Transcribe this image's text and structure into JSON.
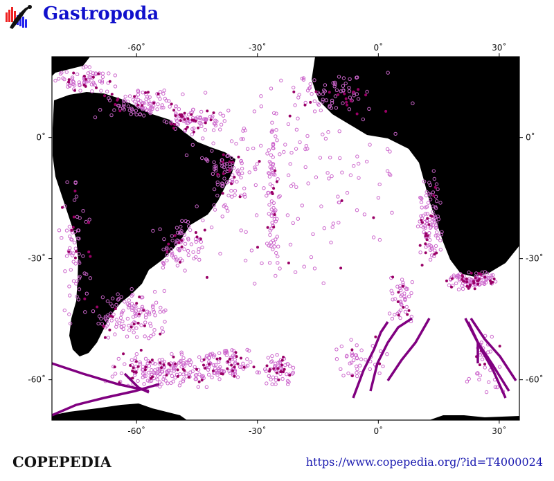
{
  "header": {
    "title": "Gastropoda",
    "logo_icon": "copepedia-logo-icon"
  },
  "map": {
    "projection": "equirectangular",
    "lon_range": [
      -81,
      35
    ],
    "lat_range": [
      -70,
      20
    ],
    "lon_ticks": [
      {
        "v": -60,
        "label": "-60˚"
      },
      {
        "v": -30,
        "label": "-30˚"
      },
      {
        "v": 0,
        "label": "0˚"
      },
      {
        "v": 30,
        "label": "30˚"
      }
    ],
    "lat_ticks": [
      {
        "v": 0,
        "label": "0˚"
      },
      {
        "v": -30,
        "label": "-30˚"
      },
      {
        "v": -60,
        "label": "-60˚"
      }
    ],
    "colors": {
      "land": "#000000",
      "ocean": "#ffffff",
      "open_marker": "#cc66cc",
      "filled_marker": "#990066",
      "track": "#800080"
    }
  },
  "footer": {
    "brand": "COPEPEDIA",
    "url": "https://www.copepedia.org/?id=T4000024"
  }
}
